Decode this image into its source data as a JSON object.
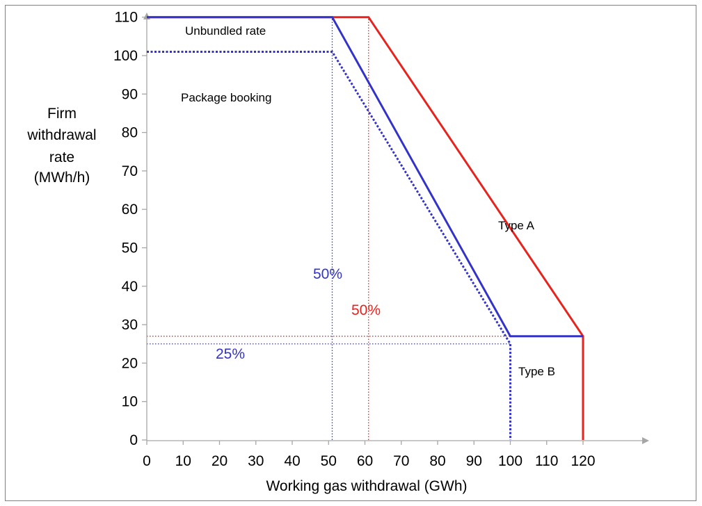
{
  "chart_data": {
    "type": "line",
    "xlabel": "Working gas withdrawal (GWh)",
    "ylabel_lines": [
      "Firm",
      "withdrawal",
      "rate",
      "(MWh/h)"
    ],
    "xlim": [
      0,
      120
    ],
    "ylim": [
      0,
      110
    ],
    "x_ticks": [
      0,
      10,
      20,
      30,
      40,
      50,
      60,
      70,
      80,
      90,
      100,
      110,
      120
    ],
    "y_ticks": [
      0,
      10,
      20,
      30,
      40,
      50,
      60,
      70,
      80,
      90,
      100,
      110
    ],
    "grid": false,
    "series": [
      {
        "name": "Type A",
        "color": "#e8231d",
        "style": "solid",
        "points": [
          [
            0,
            110
          ],
          [
            61,
            110
          ],
          [
            120,
            27
          ],
          [
            120,
            0
          ]
        ]
      },
      {
        "name": "Type B",
        "color": "#3333cc",
        "style": "solid",
        "points": [
          [
            0,
            110
          ],
          [
            51,
            110
          ],
          [
            100,
            27
          ],
          [
            120,
            27
          ]
        ]
      },
      {
        "name": "Package booking",
        "color": "#3333cc",
        "style": "dotted",
        "points": [
          [
            0,
            101
          ],
          [
            51,
            101
          ],
          [
            100,
            25
          ],
          [
            100,
            0
          ]
        ]
      }
    ],
    "reference_lines": [
      {
        "color": "#3333cc",
        "points": [
          [
            51,
            0
          ],
          [
            51,
            110
          ]
        ]
      },
      {
        "color": "#e8231d",
        "points": [
          [
            61,
            0
          ],
          [
            61,
            110
          ]
        ]
      },
      {
        "color": "#e8231d",
        "points": [
          [
            0,
            27
          ],
          [
            100,
            27
          ]
        ]
      },
      {
        "color": "#3333cc",
        "points": [
          [
            0,
            25
          ],
          [
            100,
            25
          ]
        ]
      }
    ],
    "annotations": [
      {
        "text": "Unbundled rate",
        "color": "#000000"
      },
      {
        "text": "Package booking",
        "color": "#000000"
      },
      {
        "text": "Type A",
        "color": "#000000"
      },
      {
        "text": "Type B",
        "color": "#000000"
      },
      {
        "text": "50%",
        "color": "#3333cc"
      },
      {
        "text": "50%",
        "color": "#e8231d"
      },
      {
        "text": "25%",
        "color": "#3333cc"
      }
    ]
  }
}
